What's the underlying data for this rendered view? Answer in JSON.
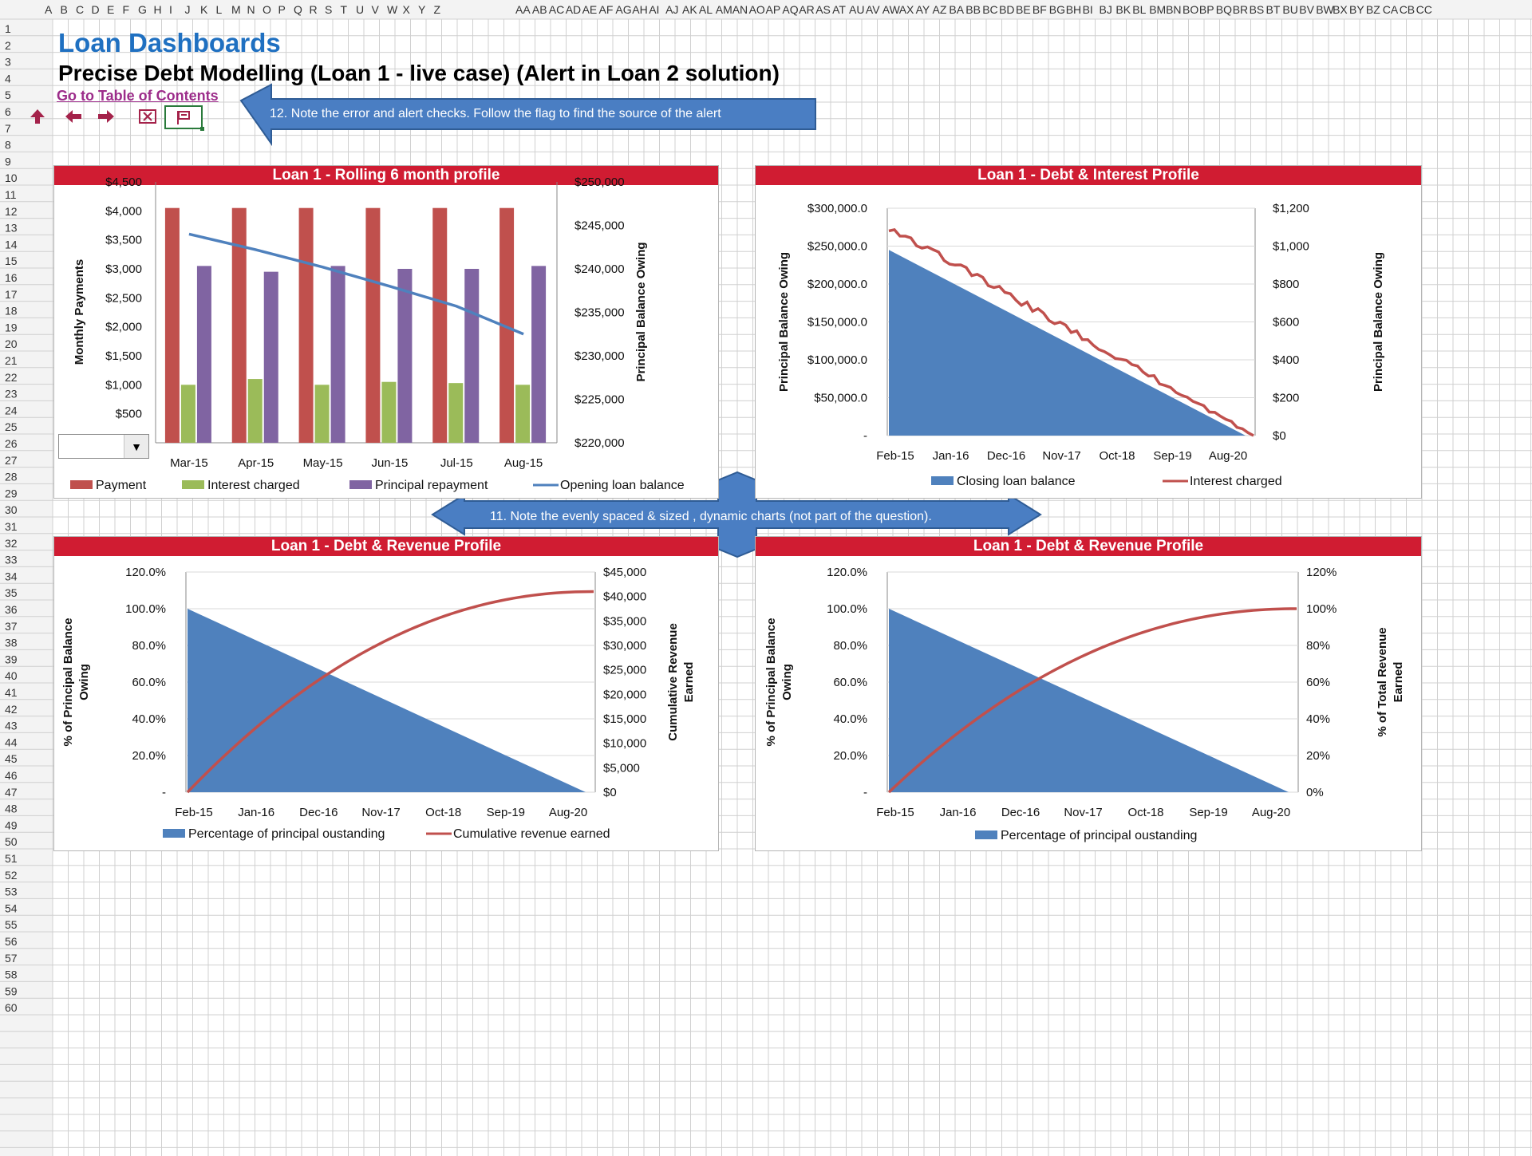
{
  "sheet": {
    "columns": [
      "A",
      "B",
      "C",
      "D",
      "E",
      "F",
      "G",
      "H",
      "I",
      "J",
      "K",
      "L",
      "M",
      "N",
      "O",
      "P",
      "Q",
      "R",
      "S",
      "T",
      "U",
      "V",
      "W",
      "X",
      "Y",
      "Z",
      "AA",
      "AB",
      "AC",
      "AD",
      "AE",
      "AF",
      "AG",
      "AH",
      "AI",
      "AJ",
      "AK",
      "AL",
      "AM",
      "AN",
      "AO",
      "AP",
      "AQ",
      "AR",
      "AS",
      "AT",
      "AU",
      "AV",
      "AW",
      "AX",
      "AY",
      "AZ",
      "BA",
      "BB",
      "BC",
      "BD",
      "BE",
      "BF",
      "BG",
      "BH",
      "BI",
      "BJ",
      "BK",
      "BL",
      "BM",
      "BN",
      "BO",
      "BP",
      "BQ",
      "BR",
      "BS",
      "BT",
      "BU",
      "BV",
      "BW",
      "BX",
      "BY",
      "BZ",
      "CA",
      "CB",
      "CC"
    ],
    "rows": [
      1,
      2,
      3,
      4,
      5,
      6,
      7,
      8,
      9,
      10,
      11,
      12,
      13,
      14,
      15,
      16,
      17,
      18,
      19,
      20,
      21,
      22,
      23,
      24,
      25,
      26,
      27,
      28,
      29,
      30,
      31,
      32,
      33,
      34,
      35,
      36,
      37,
      38,
      39,
      40,
      41,
      42,
      43,
      44,
      45,
      46,
      47,
      48,
      49,
      50,
      51,
      52,
      53,
      54,
      55,
      56,
      57,
      58,
      59,
      60
    ],
    "colors": {
      "header_bg": "#f3f3f3",
      "grid": "#d0d0d0",
      "header_text": "#333333"
    }
  },
  "header": {
    "title": "Loan Dashboards",
    "subtitle": "Precise Debt Modelling (Loan 1 - live case) (Alert in Loan 2 solution)",
    "toc_link": "Go to Table of Contents"
  },
  "nav": {
    "icons": [
      "arrow-up-icon",
      "arrow-left-icon",
      "arrow-right-icon",
      "error-check-icon",
      "flag-icon"
    ]
  },
  "callouts": {
    "top": "12. Note the error and alert checks. Follow the flag to find the source of the alert",
    "middle": "11. Note the evenly spaced & sized , dynamic charts (not part of the question)."
  },
  "dropdown": {
    "value": ""
  },
  "colors": {
    "panel_header": "#d01c32",
    "blue_series": "#4f81bd",
    "red_series": "#c0504d",
    "green_series": "#9bbb59",
    "purple_series": "#8064a2",
    "callout": "#4a7ec3"
  },
  "chart_data": [
    {
      "id": "rolling",
      "type": "bar",
      "title": "Loan 1 - Rolling 6 month profile",
      "categories": [
        "Mar-15",
        "Apr-15",
        "May-15",
        "Jun-15",
        "Jul-15",
        "Aug-15"
      ],
      "series": [
        {
          "name": "Payment",
          "axis": "left",
          "values": [
            4050,
            4050,
            4050,
            4050,
            4050,
            4050
          ]
        },
        {
          "name": "Interest charged",
          "axis": "left",
          "values": [
            1000,
            1100,
            1000,
            1050,
            1030,
            1000
          ]
        },
        {
          "name": "Principal repayment",
          "axis": "left",
          "values": [
            3050,
            2950,
            3050,
            3000,
            3000,
            3050
          ]
        },
        {
          "name": "Opening loan balance",
          "axis": "right",
          "type": "line",
          "values": [
            244000,
            242200,
            240200,
            238000,
            235700,
            232500
          ]
        }
      ],
      "ylabel": "Monthly Payments",
      "y2label": "Principal Balance Owing",
      "yticks": [
        "$500",
        "$1,000",
        "$1,500",
        "$2,000",
        "$2,500",
        "$3,000",
        "$3,500",
        "$4,000",
        "$4,500"
      ],
      "y2ticks": [
        "$220,000",
        "$225,000",
        "$230,000",
        "$235,000",
        "$240,000",
        "$245,000",
        "$250,000"
      ],
      "ylim": [
        0,
        4500
      ],
      "y2lim": [
        220000,
        250000
      ],
      "legend": "bottom"
    },
    {
      "id": "interest",
      "type": "area",
      "title": "Loan 1 - Debt & Interest Profile",
      "xticks": [
        "Feb-15",
        "Jan-16",
        "Dec-16",
        "Nov-17",
        "Oct-18",
        "Sep-19",
        "Aug-20"
      ],
      "series": [
        {
          "name": "Closing loan balance",
          "axis": "left",
          "type": "area",
          "start": 245000,
          "end": 0
        },
        {
          "name": "Interest charged",
          "axis": "right",
          "type": "line",
          "start": 1100,
          "end": 0
        }
      ],
      "ylabel": "Principal Balance Owing",
      "y2label": "Principal Balance Owing",
      "yticks": [
        "-",
        "$50,000.0",
        "$100,000.0",
        "$150,000.0",
        "$200,000.0",
        "$250,000.0",
        "$300,000.0"
      ],
      "y2ticks": [
        "$0",
        "$200",
        "$400",
        "$600",
        "$800",
        "$1,000",
        "$1,200"
      ],
      "ylim": [
        0,
        300000
      ],
      "y2lim": [
        0,
        1200
      ],
      "legend": "bottom"
    },
    {
      "id": "revenue1",
      "type": "area",
      "title": "Loan 1 - Debt & Revenue Profile",
      "xticks": [
        "Feb-15",
        "Jan-16",
        "Dec-16",
        "Nov-17",
        "Oct-18",
        "Sep-19",
        "Aug-20"
      ],
      "series": [
        {
          "name": "Percentage of principal oustanding",
          "axis": "left",
          "type": "area",
          "start": 1.0,
          "end": 0
        },
        {
          "name": "Cumulative revenue earned",
          "axis": "right",
          "type": "line",
          "start": 0,
          "end": 41000
        }
      ],
      "ylabel": "% of Principal Balance Owing",
      "y2label": "Cumulative Revenue Earned",
      "yticks": [
        "-",
        "20.0%",
        "40.0%",
        "60.0%",
        "80.0%",
        "100.0%",
        "120.0%"
      ],
      "y2ticks": [
        "$0",
        "$5,000",
        "$10,000",
        "$15,000",
        "$20,000",
        "$25,000",
        "$30,000",
        "$35,000",
        "$40,000",
        "$45,000"
      ],
      "ylim": [
        0,
        1.2
      ],
      "y2lim": [
        0,
        45000
      ],
      "legend": "bottom"
    },
    {
      "id": "revenue2",
      "type": "area",
      "title": "Loan 1 - Debt & Revenue Profile",
      "xticks": [
        "Feb-15",
        "Jan-16",
        "Dec-16",
        "Nov-17",
        "Oct-18",
        "Sep-19",
        "Aug-20"
      ],
      "series": [
        {
          "name": "Percentage of principal oustanding",
          "axis": "left",
          "type": "area",
          "start": 1.0,
          "end": 0
        },
        {
          "name": "Cumulative revenue earned",
          "axis": "right",
          "type": "line",
          "start": 0,
          "end": 1.0
        }
      ],
      "ylabel": "% of Principal Balance Owing",
      "y2label": "% of Total Revenue Earned",
      "yticks": [
        "-",
        "20.0%",
        "40.0%",
        "60.0%",
        "80.0%",
        "100.0%",
        "120.0%"
      ],
      "y2ticks": [
        "0%",
        "20%",
        "40%",
        "60%",
        "80%",
        "100%",
        "120%"
      ],
      "ylim": [
        0,
        1.2
      ],
      "y2lim": [
        0,
        1.2
      ],
      "legend": "bottom",
      "legend_items": [
        "Percentage of principal oustanding"
      ]
    }
  ]
}
